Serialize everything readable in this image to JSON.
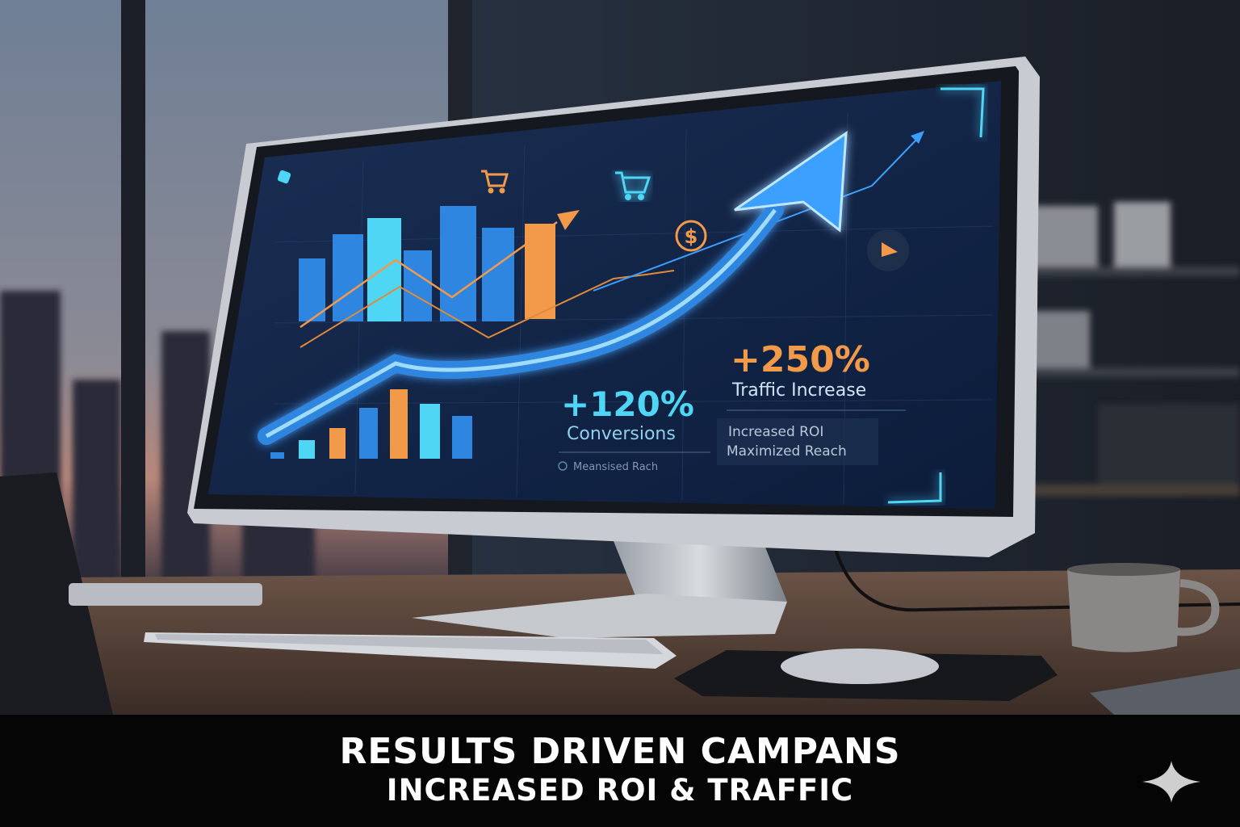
{
  "screen": {
    "stat_primary": {
      "value": "+250%",
      "label": "Traffic Increase"
    },
    "stat_secondary": {
      "value": "+120%",
      "label": "Conversions"
    },
    "notes": [
      "Increased ROI",
      "Maximized Reach"
    ],
    "footer_note": "Meansised Rach"
  },
  "caption": {
    "title": "RESULTS DRIVEN CAMPANS",
    "subtitle": "INCREASED ROI & TRAFFIC"
  },
  "icons": [
    "cart-icon",
    "dollar-icon",
    "play-icon",
    "trend-arrow-icon",
    "sparkle-icon"
  ],
  "colors": {
    "accent_blue": "#3aa0ff",
    "accent_cyan": "#4fd6f5",
    "accent_orange": "#f29a4a",
    "screen_bg": "#0f2346"
  }
}
